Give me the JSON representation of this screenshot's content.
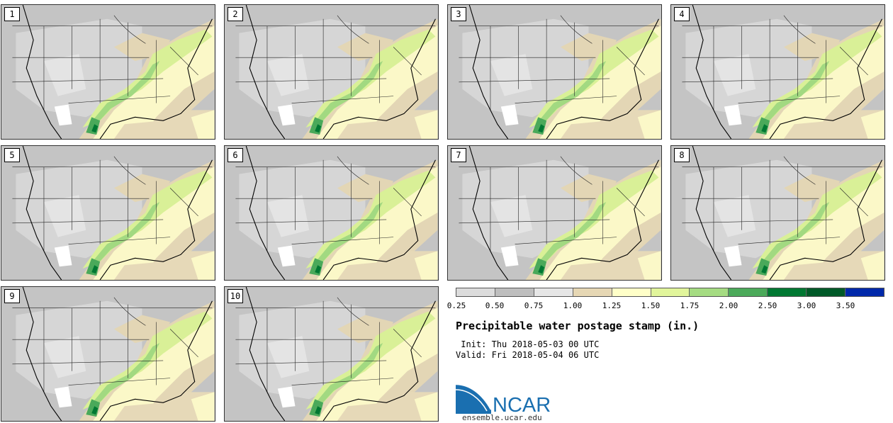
{
  "panels": [
    {
      "number": "1"
    },
    {
      "number": "2"
    },
    {
      "number": "3"
    },
    {
      "number": "4"
    },
    {
      "number": "5"
    },
    {
      "number": "6"
    },
    {
      "number": "7"
    },
    {
      "number": "8"
    },
    {
      "number": "9"
    },
    {
      "number": "10"
    }
  ],
  "colorbar": {
    "colors": [
      "#dcdcdc",
      "#bebebe",
      "#e6e6e6",
      "#e6d7b4",
      "#ffffc8",
      "#e1f59b",
      "#a5dc82",
      "#4baa5a",
      "#007832",
      "#005a28",
      "#0028aa"
    ],
    "ticks": [
      "0.25",
      "0.50",
      "0.75",
      "1.00",
      "1.25",
      "1.50",
      "1.75",
      "2.00",
      "2.50",
      "3.00",
      "3.50"
    ]
  },
  "title": "Precipitable water postage stamp (in.)",
  "init": " Init: Thu 2018-05-03 00 UTC",
  "valid": "Valid: Fri 2018-05-04 06 UTC",
  "logo": {
    "text": "NCAR",
    "color": "#1a6fb0"
  },
  "site": "ensemble.ucar.edu"
}
